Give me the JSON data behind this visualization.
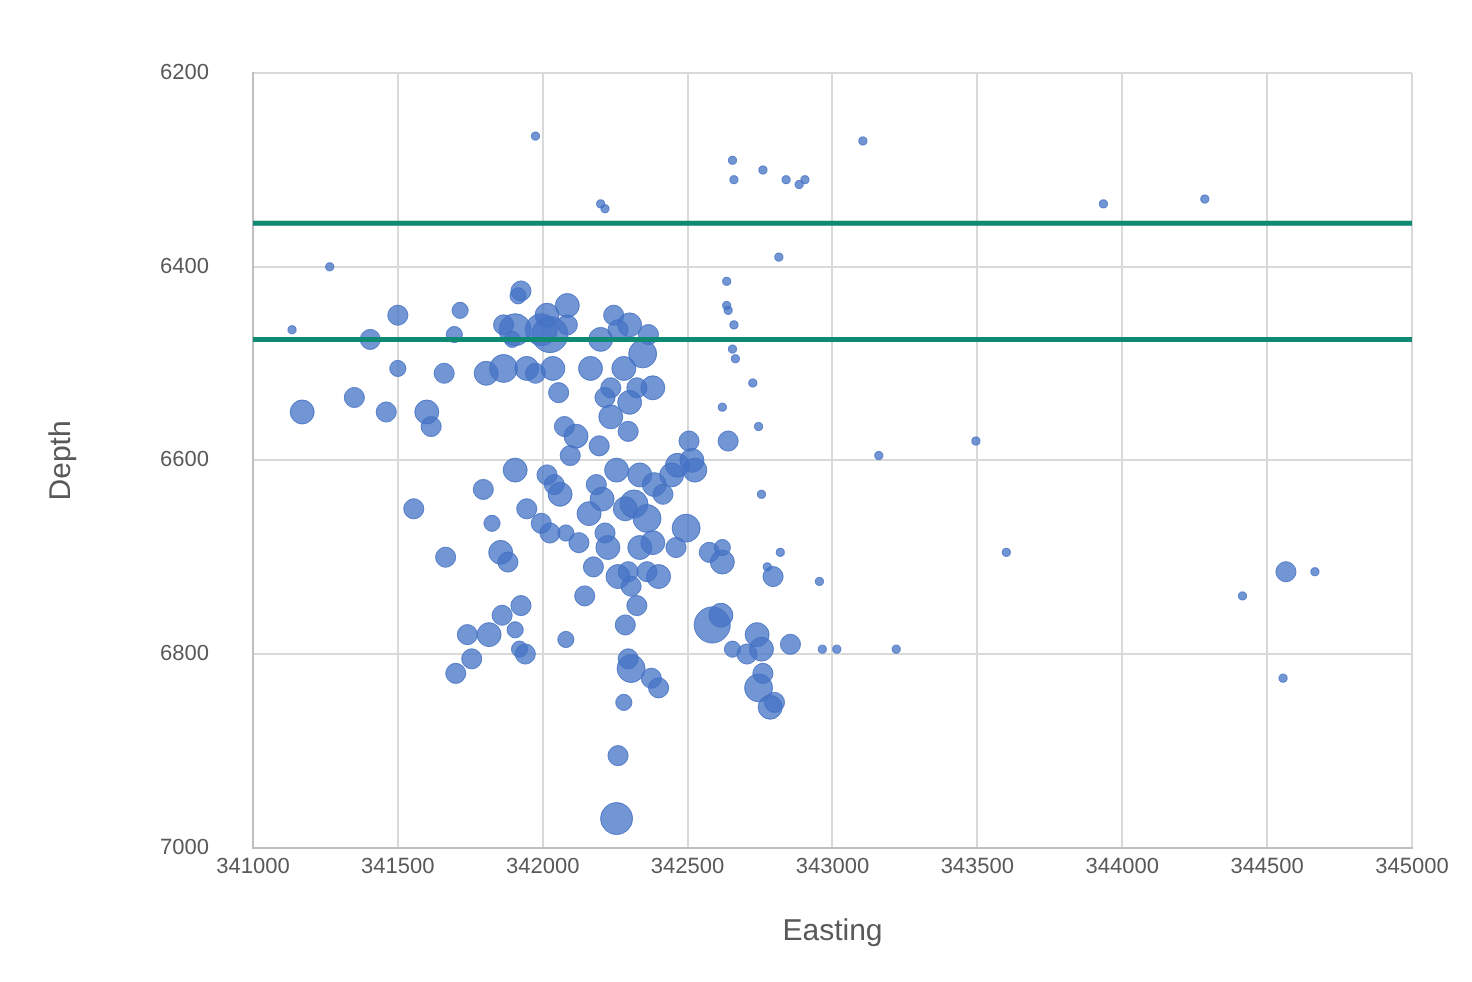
{
  "chart_data": {
    "type": "bubble",
    "xlabel": "Easting",
    "ylabel": "Depth",
    "xlim": [
      341000,
      345000
    ],
    "xticks": [
      341000,
      341500,
      342000,
      342500,
      343000,
      343500,
      344000,
      344500,
      345000
    ],
    "ylim": [
      7000,
      6200
    ],
    "yticks": [
      6200,
      6400,
      6600,
      6800,
      7000
    ],
    "grid": true,
    "legend": false,
    "ref_lines": [
      {
        "axis": "y",
        "value": 6355,
        "color": "#0e8a72"
      },
      {
        "axis": "y",
        "value": 6475,
        "color": "#0e8a72"
      }
    ],
    "series": [
      {
        "color": "#4472c4",
        "x": [
          341170,
          341350,
          341405,
          341500,
          341460,
          341555,
          341615,
          341600,
          341500,
          341660,
          341695,
          341715,
          341665,
          341700,
          341755,
          341740,
          341795,
          341815,
          341860,
          341905,
          341920,
          341925,
          341825,
          341805,
          341865,
          341915,
          341895,
          341925,
          341905,
          341865,
          341945,
          341975,
          341995,
          342025,
          342015,
          342085,
          342035,
          342055,
          342085,
          342075,
          342095,
          342115,
          342165,
          342215,
          342235,
          342280,
          342200,
          342245,
          342300,
          342260,
          342345,
          342365,
          342380,
          342325,
          342300,
          342195,
          342235,
          342295,
          341905,
          342015,
          342040,
          341945,
          341995,
          342060,
          342080,
          342025,
          342125,
          342160,
          342185,
          342205,
          342255,
          342225,
          342175,
          342285,
          342315,
          342335,
          342360,
          342385,
          342415,
          342445,
          342465,
          342495,
          342460,
          342380,
          342335,
          342295,
          342260,
          342360,
          342400,
          342505,
          342525,
          342215,
          342305,
          342325,
          342145,
          341940,
          341855,
          341880,
          342285,
          342295,
          342305,
          342280,
          342260,
          342255,
          342080,
          342375,
          342400,
          342585,
          342615,
          342655,
          342740,
          342755,
          342705,
          342760,
          342745,
          342785,
          342800,
          342855,
          342795,
          342575,
          342620,
          342620,
          342515,
          342640,
          341975,
          342200,
          342215,
          342655,
          342660,
          342760,
          342840,
          342905,
          343105,
          342885,
          342815,
          342635,
          342635,
          342640,
          342660,
          342655,
          342665,
          342725,
          342620,
          342745,
          342755,
          342820,
          342775,
          342955,
          342965,
          343015,
          343220,
          343160,
          343495,
          343600,
          344415,
          344565,
          344665,
          344555,
          344285,
          343935,
          341265,
          341135
        ],
        "values": [
          6550,
          6535,
          6475,
          6450,
          6550,
          6650,
          6565,
          6550,
          6505,
          6510,
          6470,
          6445,
          6700,
          6820,
          6805,
          6780,
          6630,
          6780,
          6760,
          6775,
          6795,
          6750,
          6665,
          6510,
          6460,
          6430,
          6475,
          6425,
          6465,
          6505,
          6505,
          6510,
          6465,
          6470,
          6450,
          6440,
          6505,
          6530,
          6460,
          6565,
          6595,
          6575,
          6505,
          6535,
          6525,
          6505,
          6475,
          6450,
          6460,
          6465,
          6490,
          6470,
          6525,
          6525,
          6540,
          6585,
          6555,
          6570,
          6610,
          6615,
          6625,
          6650,
          6665,
          6635,
          6675,
          6675,
          6685,
          6655,
          6625,
          6640,
          6610,
          6690,
          6710,
          6650,
          6645,
          6615,
          6660,
          6625,
          6635,
          6615,
          6605,
          6670,
          6690,
          6685,
          6690,
          6715,
          6720,
          6715,
          6720,
          6580,
          6610,
          6675,
          6730,
          6750,
          6740,
          6800,
          6695,
          6705,
          6770,
          6805,
          6815,
          6850,
          6905,
          6970,
          6785,
          6825,
          6835,
          6770,
          6760,
          6795,
          6780,
          6795,
          6800,
          6820,
          6835,
          6855,
          6850,
          6790,
          6720,
          6695,
          6705,
          6690,
          6600,
          6580,
          6265,
          6335,
          6340,
          6290,
          6310,
          6300,
          6310,
          6310,
          6270,
          6315,
          6390,
          6415,
          6440,
          6445,
          6460,
          6485,
          6495,
          6520,
          6545,
          6565,
          6635,
          6695,
          6710,
          6725,
          6795,
          6795,
          6795,
          6595,
          6580,
          6695,
          6740,
          6715,
          6715,
          6825,
          6330,
          6335,
          6400,
          6465
        ],
        "sizes": [
          0.44,
          0.31,
          0.31,
          0.31,
          0.31,
          0.31,
          0.31,
          0.44,
          0.2,
          0.31,
          0.2,
          0.2,
          0.31,
          0.31,
          0.31,
          0.31,
          0.31,
          0.44,
          0.31,
          0.2,
          0.2,
          0.31,
          0.2,
          0.44,
          0.31,
          0.2,
          0.2,
          0.31,
          0.79,
          0.6,
          0.44,
          0.31,
          0.79,
          1,
          0.44,
          0.44,
          0.44,
          0.31,
          0.31,
          0.31,
          0.31,
          0.44,
          0.44,
          0.31,
          0.31,
          0.44,
          0.44,
          0.31,
          0.44,
          0.31,
          0.6,
          0.31,
          0.44,
          0.31,
          0.44,
          0.31,
          0.44,
          0.31,
          0.44,
          0.31,
          0.31,
          0.31,
          0.31,
          0.44,
          0.2,
          0.31,
          0.31,
          0.44,
          0.31,
          0.44,
          0.44,
          0.44,
          0.31,
          0.44,
          0.6,
          0.44,
          0.6,
          0.44,
          0.31,
          0.44,
          0.44,
          0.6,
          0.31,
          0.44,
          0.44,
          0.31,
          0.44,
          0.31,
          0.44,
          0.31,
          0.44,
          0.31,
          0.31,
          0.31,
          0.31,
          0.31,
          0.44,
          0.31,
          0.31,
          0.31,
          0.6,
          0.2,
          0.31,
          0.79,
          0.2,
          0.31,
          0.31,
          1,
          0.44,
          0.2,
          0.44,
          0.44,
          0.31,
          0.31,
          0.6,
          0.44,
          0.31,
          0.31,
          0.31,
          0.31,
          0.44,
          0.2,
          0.44,
          0.31,
          0.05,
          0.05,
          0.05,
          0.05,
          0.05,
          0.05,
          0.05,
          0.05,
          0.05,
          0.05,
          0.05,
          0.05,
          0.05,
          0.05,
          0.05,
          0.05,
          0.05,
          0.05,
          0.05,
          0.05,
          0.05,
          0.05,
          0.05,
          0.05,
          0.05,
          0.05,
          0.05,
          0.05,
          0.05,
          0.05,
          0.05,
          0.31,
          0.05,
          0.05,
          0.05,
          0.05,
          0.05,
          0.05
        ]
      }
    ]
  }
}
